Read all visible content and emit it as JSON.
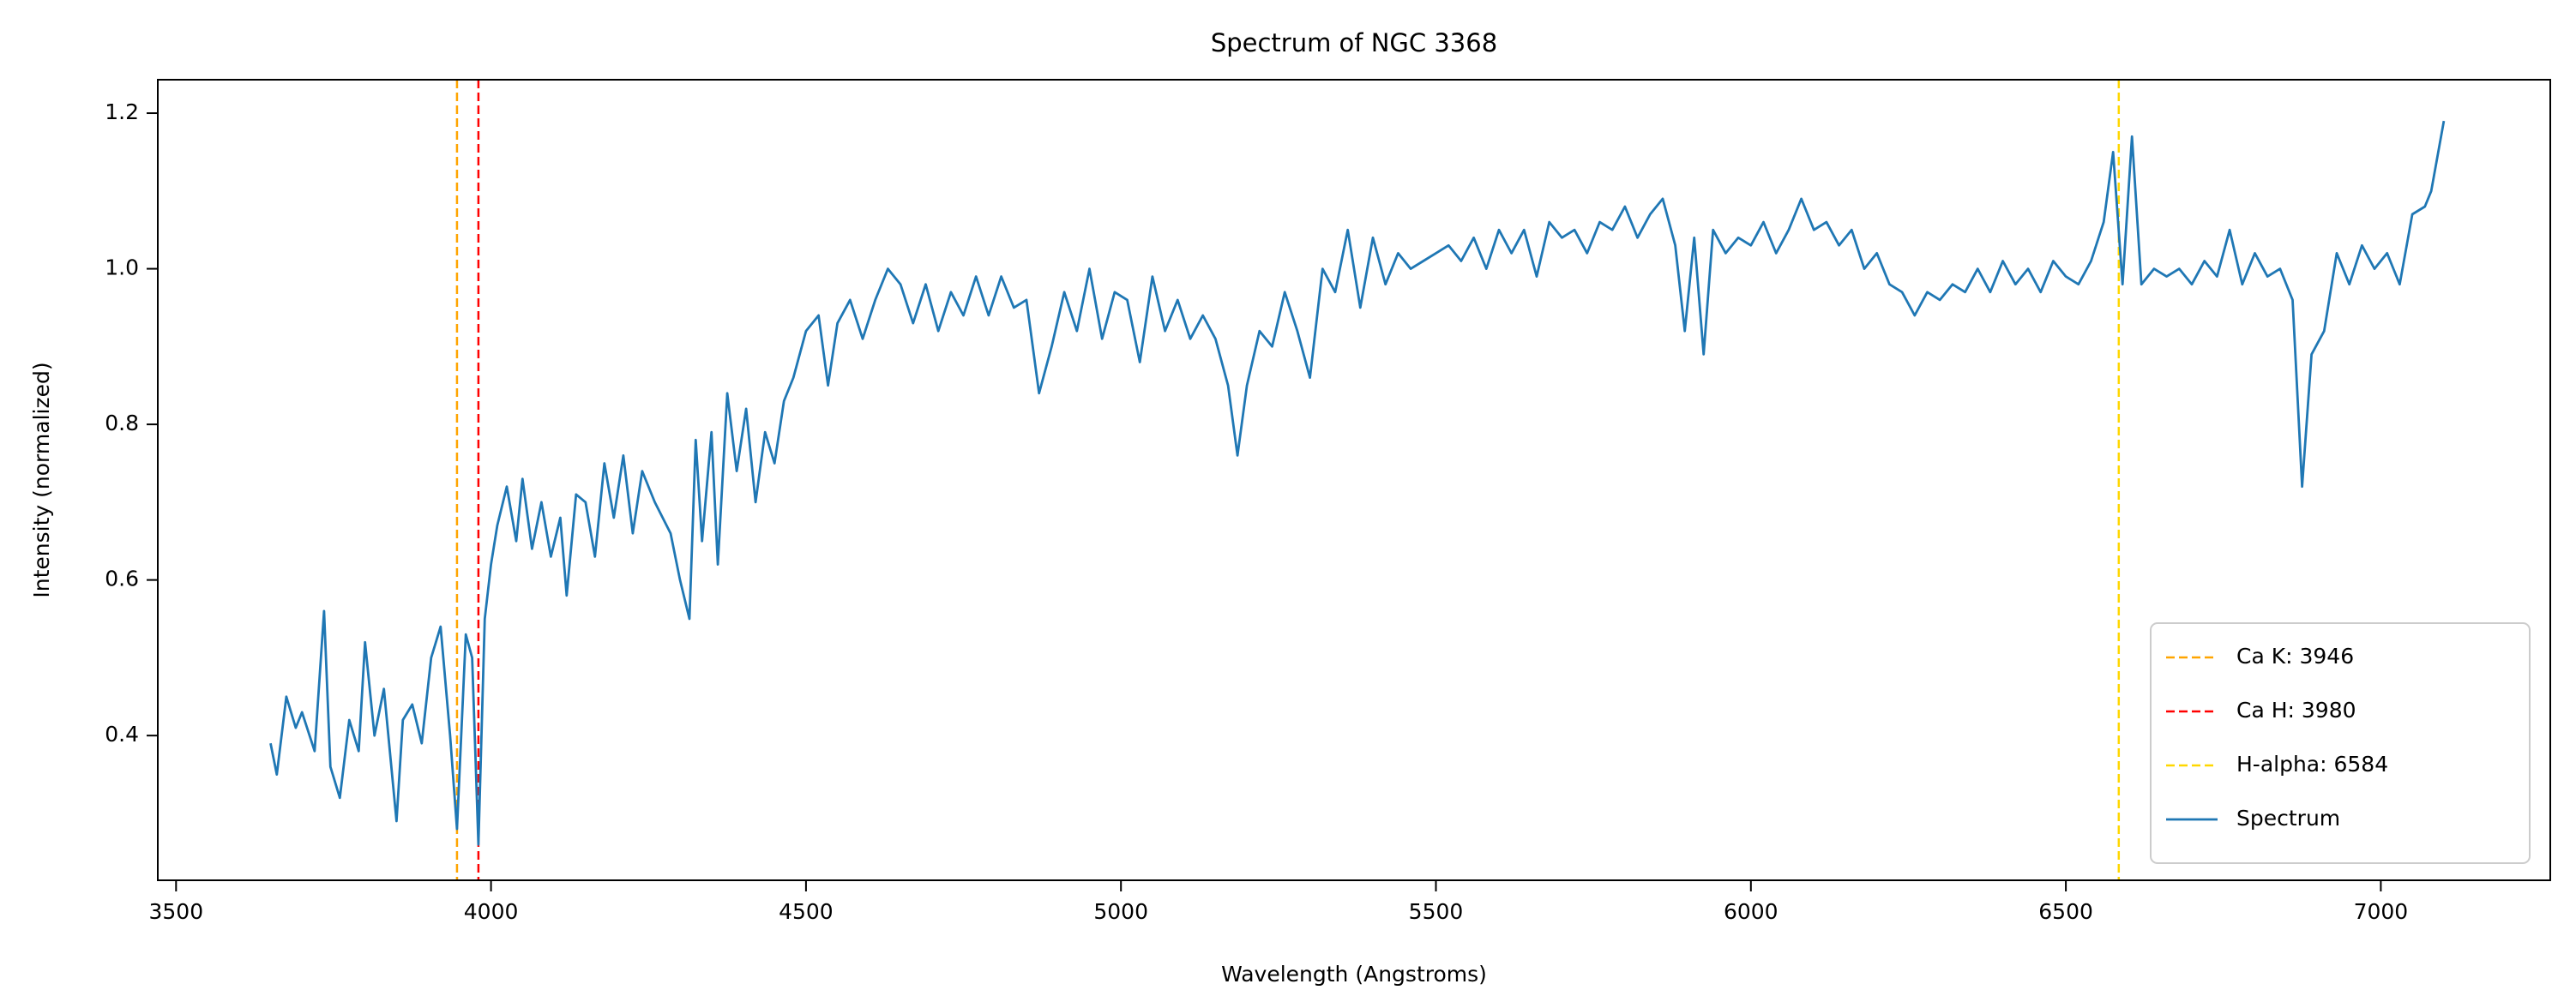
{
  "chart_data": {
    "type": "line",
    "title": "Spectrum of NGC 3368",
    "x_label": "Wavelength (Angstroms)",
    "y_label": "Intensity (normalized)",
    "x": [
      3650,
      3660,
      3675,
      3690,
      3700,
      3720,
      3735,
      3745,
      3760,
      3775,
      3790,
      3800,
      3815,
      3830,
      3850,
      3860,
      3875,
      3890,
      3905,
      3920,
      3935,
      3946,
      3960,
      3970,
      3980,
      3990,
      4000,
      4010,
      4025,
      4040,
      4050,
      4065,
      4080,
      4095,
      4110,
      4120,
      4135,
      4150,
      4165,
      4180,
      4195,
      4210,
      4225,
      4240,
      4260,
      4285,
      4300,
      4315,
      4325,
      4335,
      4350,
      4360,
      4375,
      4390,
      4405,
      4420,
      4435,
      4450,
      4465,
      4480,
      4500,
      4520,
      4535,
      4550,
      4570,
      4590,
      4610,
      4630,
      4650,
      4670,
      4690,
      4710,
      4730,
      4750,
      4770,
      4790,
      4810,
      4830,
      4850,
      4870,
      4890,
      4910,
      4930,
      4950,
      4970,
      4990,
      5010,
      5030,
      5050,
      5070,
      5090,
      5110,
      5130,
      5150,
      5170,
      5185,
      5200,
      5220,
      5240,
      5260,
      5280,
      5300,
      5320,
      5340,
      5360,
      5380,
      5400,
      5420,
      5440,
      5460,
      5480,
      5500,
      5520,
      5540,
      5560,
      5580,
      5600,
      5620,
      5640,
      5660,
      5680,
      5700,
      5720,
      5740,
      5760,
      5780,
      5800,
      5820,
      5840,
      5860,
      5880,
      5895,
      5910,
      5925,
      5940,
      5960,
      5980,
      6000,
      6020,
      6040,
      6060,
      6080,
      6100,
      6120,
      6140,
      6160,
      6180,
      6200,
      6220,
      6240,
      6260,
      6280,
      6300,
      6320,
      6340,
      6360,
      6380,
      6400,
      6420,
      6440,
      6460,
      6480,
      6500,
      6520,
      6540,
      6560,
      6575,
      6590,
      6605,
      6620,
      6640,
      6660,
      6680,
      6700,
      6720,
      6740,
      6760,
      6780,
      6800,
      6820,
      6840,
      6860,
      6875,
      6890,
      6910,
      6930,
      6950,
      6970,
      6990,
      7010,
      7030,
      7050,
      7070,
      7080,
      7100
    ],
    "series": [
      {
        "name": "Spectrum",
        "color": "#1f77b4",
        "values": [
          0.39,
          0.35,
          0.45,
          0.41,
          0.43,
          0.38,
          0.56,
          0.36,
          0.32,
          0.42,
          0.38,
          0.52,
          0.4,
          0.46,
          0.29,
          0.42,
          0.44,
          0.39,
          0.5,
          0.54,
          0.4,
          0.28,
          0.53,
          0.5,
          0.26,
          0.55,
          0.62,
          0.67,
          0.72,
          0.65,
          0.73,
          0.64,
          0.7,
          0.63,
          0.68,
          0.58,
          0.71,
          0.7,
          0.63,
          0.75,
          0.68,
          0.76,
          0.66,
          0.74,
          0.7,
          0.66,
          0.6,
          0.55,
          0.78,
          0.65,
          0.79,
          0.62,
          0.84,
          0.74,
          0.82,
          0.7,
          0.79,
          0.75,
          0.83,
          0.86,
          0.92,
          0.94,
          0.85,
          0.93,
          0.96,
          0.91,
          0.96,
          1.0,
          0.98,
          0.93,
          0.98,
          0.92,
          0.97,
          0.94,
          0.99,
          0.94,
          0.99,
          0.95,
          0.96,
          0.84,
          0.9,
          0.97,
          0.92,
          1.0,
          0.91,
          0.97,
          0.96,
          0.88,
          0.99,
          0.92,
          0.96,
          0.91,
          0.94,
          0.91,
          0.85,
          0.76,
          0.85,
          0.92,
          0.9,
          0.97,
          0.92,
          0.86,
          1.0,
          0.97,
          1.05,
          0.95,
          1.04,
          0.98,
          1.02,
          1.0,
          1.01,
          1.02,
          1.03,
          1.01,
          1.04,
          1.0,
          1.05,
          1.02,
          1.05,
          0.99,
          1.06,
          1.04,
          1.05,
          1.02,
          1.06,
          1.05,
          1.08,
          1.04,
          1.07,
          1.09,
          1.03,
          0.92,
          1.04,
          0.89,
          1.05,
          1.02,
          1.04,
          1.03,
          1.06,
          1.02,
          1.05,
          1.09,
          1.05,
          1.06,
          1.03,
          1.05,
          1.0,
          1.02,
          0.98,
          0.97,
          0.94,
          0.97,
          0.96,
          0.98,
          0.97,
          1.0,
          0.97,
          1.01,
          0.98,
          1.0,
          0.97,
          1.01,
          0.99,
          0.98,
          1.01,
          1.06,
          1.15,
          0.98,
          1.17,
          0.98,
          1.0,
          0.99,
          1.0,
          0.98,
          1.01,
          0.99,
          1.05,
          0.98,
          1.02,
          0.99,
          1.0,
          0.96,
          0.72,
          0.89,
          0.92,
          1.02,
          0.98,
          1.03,
          1.0,
          1.02,
          0.98,
          1.07,
          1.08,
          1.1,
          1.19
        ]
      }
    ],
    "vlines": [
      {
        "name": "Ca K: 3946",
        "x": 3946,
        "color": "#ffa500"
      },
      {
        "name": "Ca H: 3980",
        "x": 3980,
        "color": "#ff0000"
      },
      {
        "name": "H-alpha: 6584",
        "x": 6584,
        "color": "#ffd700"
      }
    ],
    "xlim": [
      3471,
      7269
    ],
    "ylim": [
      0.214,
      1.243
    ],
    "xticks": [
      3500,
      4000,
      4500,
      5000,
      5500,
      6000,
      6500,
      7000
    ],
    "yticks": [
      0.4,
      0.6,
      0.8,
      {
        "value": 1,
        "label": "1.0"
      },
      1.2
    ],
    "legend": "lower right",
    "grid": false
  }
}
